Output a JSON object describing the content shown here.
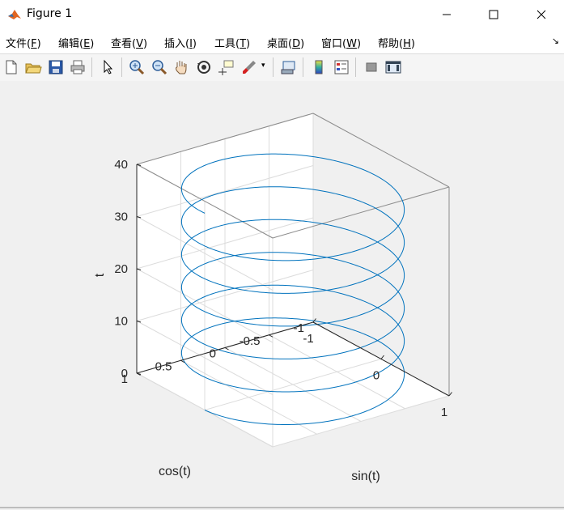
{
  "window": {
    "title": "Figure 1"
  },
  "menu": [
    {
      "label": "文件(",
      "key": "F",
      "end": ")"
    },
    {
      "label": "编辑(",
      "key": "E",
      "end": ")"
    },
    {
      "label": "查看(",
      "key": "V",
      "end": ")"
    },
    {
      "label": "插入(",
      "key": "I",
      "end": ")"
    },
    {
      "label": "工具(",
      "key": "T",
      "end": ")"
    },
    {
      "label": "桌面(",
      "key": "D",
      "end": ")"
    },
    {
      "label": "窗口(",
      "key": "W",
      "end": ")"
    },
    {
      "label": "帮助(",
      "key": "H",
      "end": ")"
    }
  ],
  "toolbar": [
    "new-figure-icon",
    "open-file-icon",
    "save-icon",
    "print-icon",
    "pointer-icon",
    "zoom-in-icon",
    "zoom-out-icon",
    "pan-hand-icon",
    "rotate-3d-icon",
    "data-cursor-icon",
    "brush-icon",
    "link-plot-icon",
    "colorbar-icon",
    "legend-icon",
    "hide-plot-tools-icon",
    "show-plot-tools-icon"
  ],
  "chart_data": {
    "type": "line3d",
    "series": [
      {
        "x_expr": "sin(t)",
        "y_expr": "cos(t)",
        "z_expr": "t",
        "t_range": [
          0,
          37.7
        ],
        "color": "#0072bd"
      }
    ],
    "xlabel": "sin(t)",
    "ylabel": "cos(t)",
    "zlabel": "t",
    "xlim": [
      -1,
      1
    ],
    "ylim": [
      -1,
      1
    ],
    "zlim": [
      0,
      40
    ],
    "xticks": [
      "-1",
      "0",
      "1"
    ],
    "yticks": [
      "-1",
      "-0.5",
      "0",
      "0.5",
      "1"
    ],
    "zticks": [
      "0",
      "10",
      "20",
      "30",
      "40"
    ],
    "grid": true,
    "box": true
  }
}
